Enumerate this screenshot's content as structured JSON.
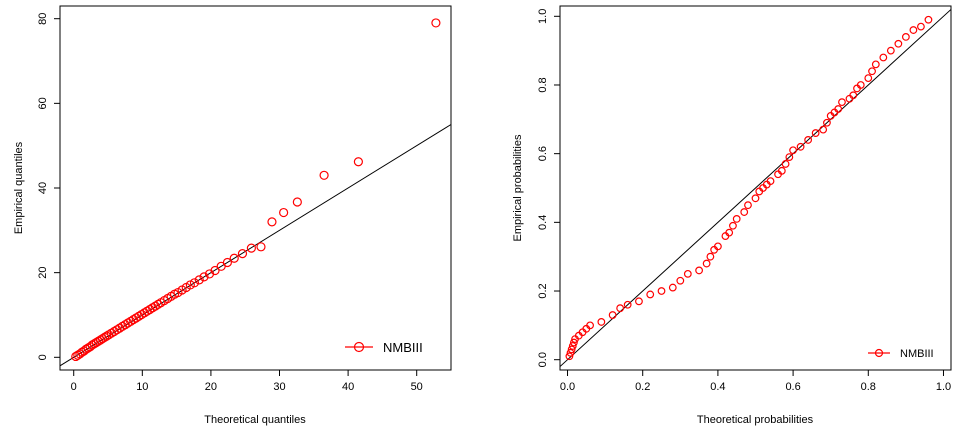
{
  "chart_data": [
    {
      "type": "scatter",
      "title": "",
      "xlabel": "Theoretical quantiles",
      "ylabel": "Empirical quantiles",
      "xlim": [
        -2,
        55
      ],
      "ylim": [
        -3,
        83
      ],
      "xticks": [
        0,
        10,
        20,
        30,
        40,
        50
      ],
      "yticks": [
        0,
        20,
        40,
        60,
        80
      ],
      "grid": false,
      "legend_placement": "bottom-right",
      "series": [
        {
          "name": "NMBIII",
          "color": "#ff0000",
          "marker": "circle",
          "x": [
            0.3,
            0.6,
            0.9,
            1.2,
            1.5,
            1.8,
            2.1,
            2.4,
            2.7,
            3.0,
            3.3,
            3.6,
            3.9,
            4.2,
            4.5,
            4.8,
            5.1,
            5.5,
            5.9,
            6.3,
            6.7,
            7.1,
            7.5,
            7.9,
            8.3,
            8.7,
            9.1,
            9.5,
            9.9,
            10.3,
            10.7,
            11.1,
            11.5,
            11.9,
            12.3,
            12.7,
            13.2,
            13.7,
            14.2,
            14.7,
            15.2,
            15.8,
            16.4,
            17.0,
            17.6,
            18.3,
            19.0,
            19.8,
            20.6,
            21.5,
            22.4,
            23.4,
            24.6,
            25.9,
            27.3,
            28.9,
            30.6,
            32.6,
            36.5,
            41.5,
            52.8
          ],
          "y": [
            0.2,
            0.5,
            0.8,
            1.2,
            1.5,
            1.9,
            2.2,
            2.5,
            2.9,
            3.2,
            3.5,
            3.8,
            4.1,
            4.4,
            4.7,
            5.0,
            5.3,
            5.7,
            6.1,
            6.5,
            6.9,
            7.3,
            7.7,
            8.1,
            8.5,
            8.9,
            9.3,
            9.7,
            10.1,
            10.5,
            10.9,
            11.3,
            11.7,
            12.1,
            12.5,
            12.9,
            13.4,
            13.9,
            14.4,
            14.9,
            15.3,
            15.9,
            16.5,
            17.1,
            17.6,
            18.3,
            19.0,
            19.7,
            20.5,
            21.5,
            22.4,
            23.4,
            24.5,
            25.8,
            26.1,
            32.0,
            34.2,
            36.7,
            43.0,
            46.2,
            79.0
          ],
          "fit_line": {
            "slope": 1.0,
            "intercept": 0
          }
        }
      ],
      "legend": [
        "NMBIII"
      ]
    },
    {
      "type": "scatter",
      "title": "",
      "xlabel": "Theoretical probabilities",
      "ylabel": "Empirical probabilities",
      "xlim": [
        -0.02,
        1.02
      ],
      "ylim": [
        -0.03,
        1.03
      ],
      "xticks": [
        "0.0",
        "0.2",
        "0.4",
        "0.6",
        "0.8",
        "1.0"
      ],
      "yticks": [
        "0.0",
        "0.2",
        "0.4",
        "0.6",
        "0.8",
        "1.0"
      ],
      "grid": false,
      "legend_placement": "bottom-right",
      "series": [
        {
          "name": "NMBIII",
          "color": "#ff0000",
          "marker": "circle",
          "x": [
            0.005,
            0.008,
            0.011,
            0.014,
            0.017,
            0.02,
            0.03,
            0.04,
            0.05,
            0.06,
            0.09,
            0.12,
            0.14,
            0.16,
            0.19,
            0.22,
            0.25,
            0.28,
            0.3,
            0.32,
            0.35,
            0.37,
            0.38,
            0.39,
            0.4,
            0.42,
            0.43,
            0.44,
            0.45,
            0.47,
            0.48,
            0.5,
            0.51,
            0.52,
            0.53,
            0.54,
            0.56,
            0.57,
            0.58,
            0.59,
            0.6,
            0.62,
            0.64,
            0.66,
            0.68,
            0.69,
            0.7,
            0.71,
            0.72,
            0.73,
            0.75,
            0.76,
            0.77,
            0.78,
            0.8,
            0.81,
            0.82,
            0.84,
            0.86,
            0.88,
            0.9,
            0.92,
            0.94,
            0.96
          ],
          "y": [
            0.01,
            0.02,
            0.03,
            0.04,
            0.05,
            0.06,
            0.07,
            0.08,
            0.09,
            0.1,
            0.11,
            0.13,
            0.15,
            0.16,
            0.17,
            0.19,
            0.2,
            0.21,
            0.23,
            0.25,
            0.26,
            0.28,
            0.3,
            0.32,
            0.33,
            0.36,
            0.37,
            0.39,
            0.41,
            0.43,
            0.45,
            0.47,
            0.49,
            0.5,
            0.51,
            0.52,
            0.54,
            0.55,
            0.57,
            0.59,
            0.61,
            0.62,
            0.64,
            0.66,
            0.67,
            0.69,
            0.71,
            0.72,
            0.73,
            0.75,
            0.76,
            0.77,
            0.79,
            0.8,
            0.82,
            0.84,
            0.86,
            0.88,
            0.9,
            0.92,
            0.94,
            0.96,
            0.97,
            0.99
          ],
          "fit_line": {
            "slope": 1.0,
            "intercept": 0
          }
        }
      ],
      "legend": [
        "NMBIII"
      ]
    }
  ]
}
